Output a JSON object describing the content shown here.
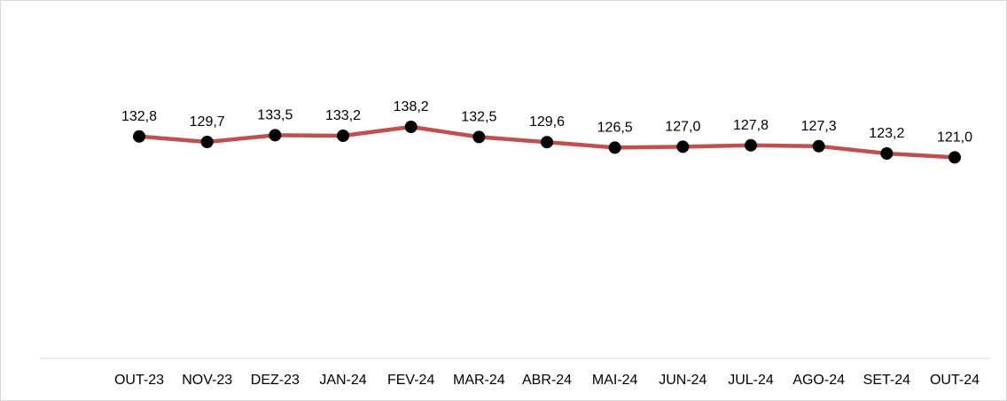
{
  "chart_data": {
    "type": "line",
    "title": "",
    "xlabel": "",
    "ylabel": "",
    "categories": [
      "OUT-23",
      "NOV-23",
      "DEZ-23",
      "JAN-24",
      "FEV-24",
      "MAR-24",
      "ABR-24",
      "MAI-24",
      "JUN-24",
      "JUL-24",
      "AGO-24",
      "SET-24",
      "OUT-24"
    ],
    "series": [
      {
        "values": [
          132.8,
          129.7,
          133.5,
          133.2,
          138.2,
          132.5,
          129.6,
          126.5,
          127.0,
          127.8,
          127.3,
          123.2,
          121.0
        ],
        "value_labels": [
          "132,8",
          "129,7",
          "133,5",
          "133,2",
          "138,2",
          "132,5",
          "129,6",
          "126,5",
          "127,0",
          "127,8",
          "127,3",
          "123,2",
          "121,0"
        ]
      }
    ],
    "ylim": [
      0,
      145
    ],
    "show_y_axis": false,
    "grid": false,
    "legend": "none",
    "colors": {
      "line": "#c0504d",
      "marker": "#000000",
      "baseline": "#d9d9d9"
    }
  }
}
